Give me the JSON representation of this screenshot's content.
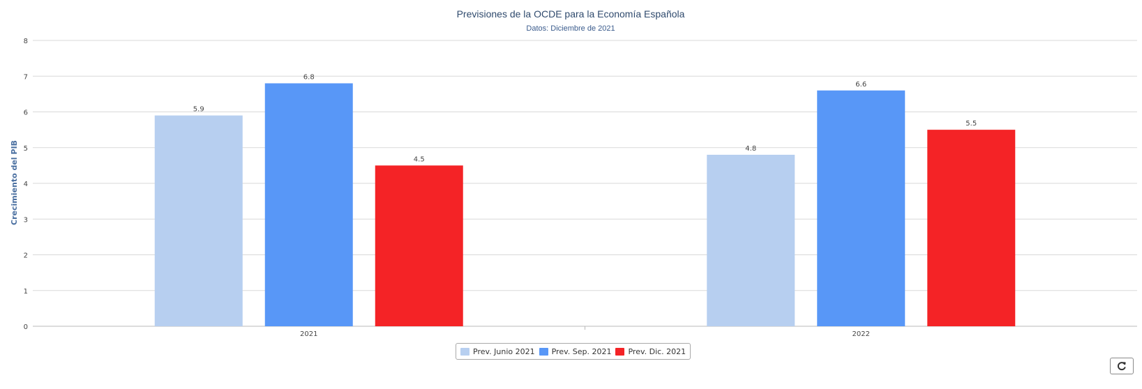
{
  "chart_data": {
    "type": "bar",
    "title": "Previsiones de la OCDE para la Economía Española",
    "subtitle": "Datos: Diciembre de 2021",
    "ylabel": "Crecimiento del PIB",
    "xlabel": "",
    "categories": [
      "2021",
      "2022"
    ],
    "ylim": [
      0,
      8
    ],
    "yticks": [
      "0",
      "1",
      "2",
      "3",
      "4",
      "5",
      "6",
      "7",
      "8"
    ],
    "grid": true,
    "legend_position": "bottom",
    "series": [
      {
        "name": "Prev. Junio 2021",
        "values": [
          5.9,
          4.8
        ],
        "color": "#b7cff0"
      },
      {
        "name": "Prev. Sep. 2021",
        "values": [
          6.8,
          6.6
        ],
        "color": "#5897f7"
      },
      {
        "name": "Prev. Dic. 2021",
        "values": [
          4.5,
          5.5
        ],
        "color": "#f42326"
      }
    ]
  },
  "toolbar": {
    "refresh_icon": "refresh-icon"
  }
}
